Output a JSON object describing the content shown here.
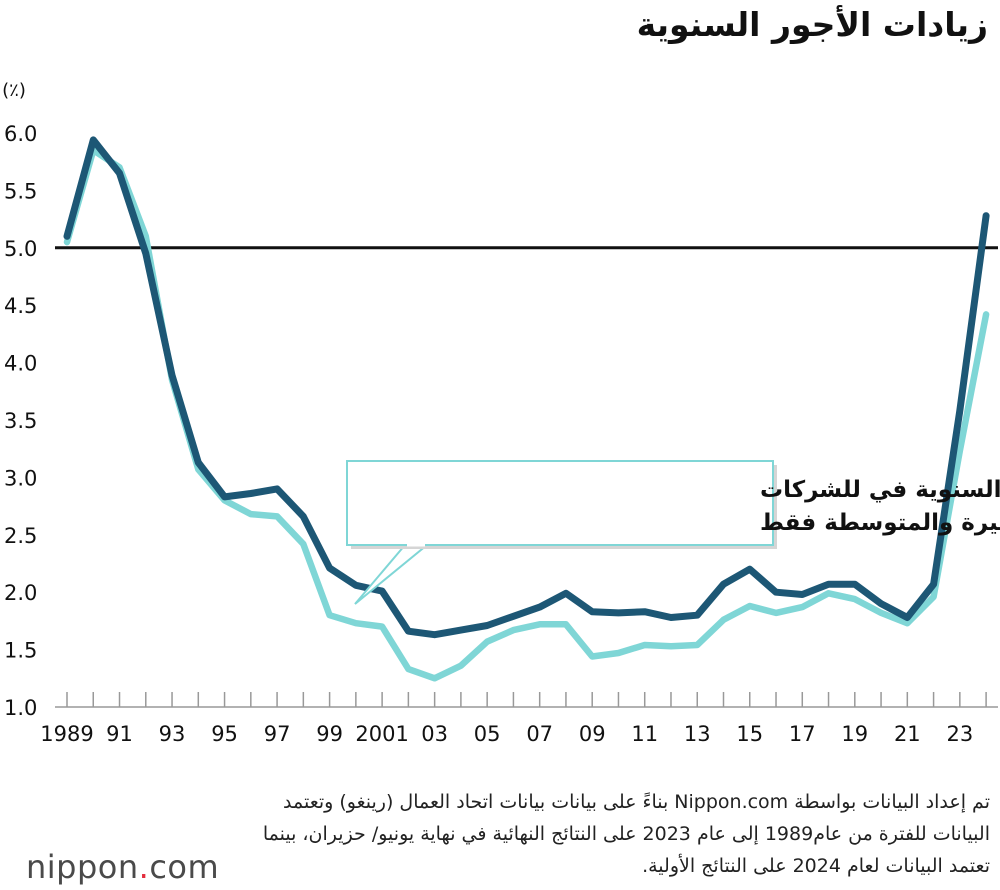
{
  "title": "زيادات الأجور السنوية",
  "unit_label": "(٪)",
  "annotation_lines": [
    "زيادات الأجور السنوية في للشركات",
    "الصغيرة والمتوسطة فقط"
  ],
  "note": "تم إعداد البيانات بواسطة Nippon.com بناءً على بيانات بيانات اتحاد العمال (رينغو) وتعتمد البيانات للفترة من عام1989 إلى عام 2023 على النتائج النهائية في نهاية يونيو/ حزيران، بينما تعتمد البيانات لعام 2024 على النتائج الأولية.",
  "logo": {
    "name": "nippon",
    "dot": ".",
    "tld": "com"
  },
  "colors": {
    "all": "#1d5775",
    "sme": "#7fd6d6",
    "reference": "#111111"
  },
  "chart_data": {
    "type": "line",
    "title": "زيادات الأجور السنوية",
    "ylabel": "(٪)",
    "xlabel": "",
    "ylim": [
      1.0,
      6.0
    ],
    "yticks": [
      "1.0",
      "1.5",
      "2.0",
      "2.5",
      "3.0",
      "3.5",
      "4.0",
      "4.5",
      "5.0",
      "5.5",
      "6.0"
    ],
    "x": [
      1989,
      1990,
      1991,
      1992,
      1993,
      1994,
      1995,
      1996,
      1997,
      1998,
      1999,
      2000,
      2001,
      2002,
      2003,
      2004,
      2005,
      2006,
      2007,
      2008,
      2009,
      2010,
      2011,
      2012,
      2013,
      2014,
      2015,
      2016,
      2017,
      2018,
      2019,
      2020,
      2021,
      2022,
      2023,
      2024
    ],
    "xtick_labels": [
      {
        "year": 1989,
        "label": "1989"
      },
      {
        "year": 1991,
        "label": "91"
      },
      {
        "year": 1993,
        "label": "93"
      },
      {
        "year": 1995,
        "label": "95"
      },
      {
        "year": 1997,
        "label": "97"
      },
      {
        "year": 1999,
        "label": "99"
      },
      {
        "year": 2001,
        "label": "2001"
      },
      {
        "year": 2003,
        "label": "03"
      },
      {
        "year": 2005,
        "label": "05"
      },
      {
        "year": 2007,
        "label": "07"
      },
      {
        "year": 2009,
        "label": "09"
      },
      {
        "year": 2011,
        "label": "11"
      },
      {
        "year": 2013,
        "label": "13"
      },
      {
        "year": 2015,
        "label": "15"
      },
      {
        "year": 2017,
        "label": "17"
      },
      {
        "year": 2019,
        "label": "19"
      },
      {
        "year": 2021,
        "label": "21"
      },
      {
        "year": 2023,
        "label": "23"
      }
    ],
    "reference_line": 5.0,
    "series": [
      {
        "name": "all-companies",
        "values": [
          5.1,
          5.94,
          5.65,
          4.95,
          3.89,
          3.13,
          2.83,
          2.86,
          2.9,
          2.66,
          2.21,
          2.06,
          2.01,
          1.66,
          1.63,
          1.67,
          1.71,
          1.79,
          1.87,
          1.99,
          1.83,
          1.82,
          1.83,
          1.78,
          1.8,
          2.07,
          2.2,
          2.0,
          1.98,
          2.07,
          2.07,
          1.9,
          1.78,
          2.07,
          3.58,
          5.28
        ]
      },
      {
        "name": "sme-only",
        "values": [
          5.05,
          5.85,
          5.7,
          5.1,
          3.85,
          3.07,
          2.8,
          2.68,
          2.66,
          2.42,
          1.8,
          1.73,
          1.7,
          1.33,
          1.25,
          1.36,
          1.57,
          1.67,
          1.72,
          1.72,
          1.44,
          1.47,
          1.54,
          1.53,
          1.54,
          1.76,
          1.88,
          1.82,
          1.87,
          1.99,
          1.94,
          1.82,
          1.73,
          1.96,
          3.23,
          4.42
        ]
      }
    ]
  }
}
